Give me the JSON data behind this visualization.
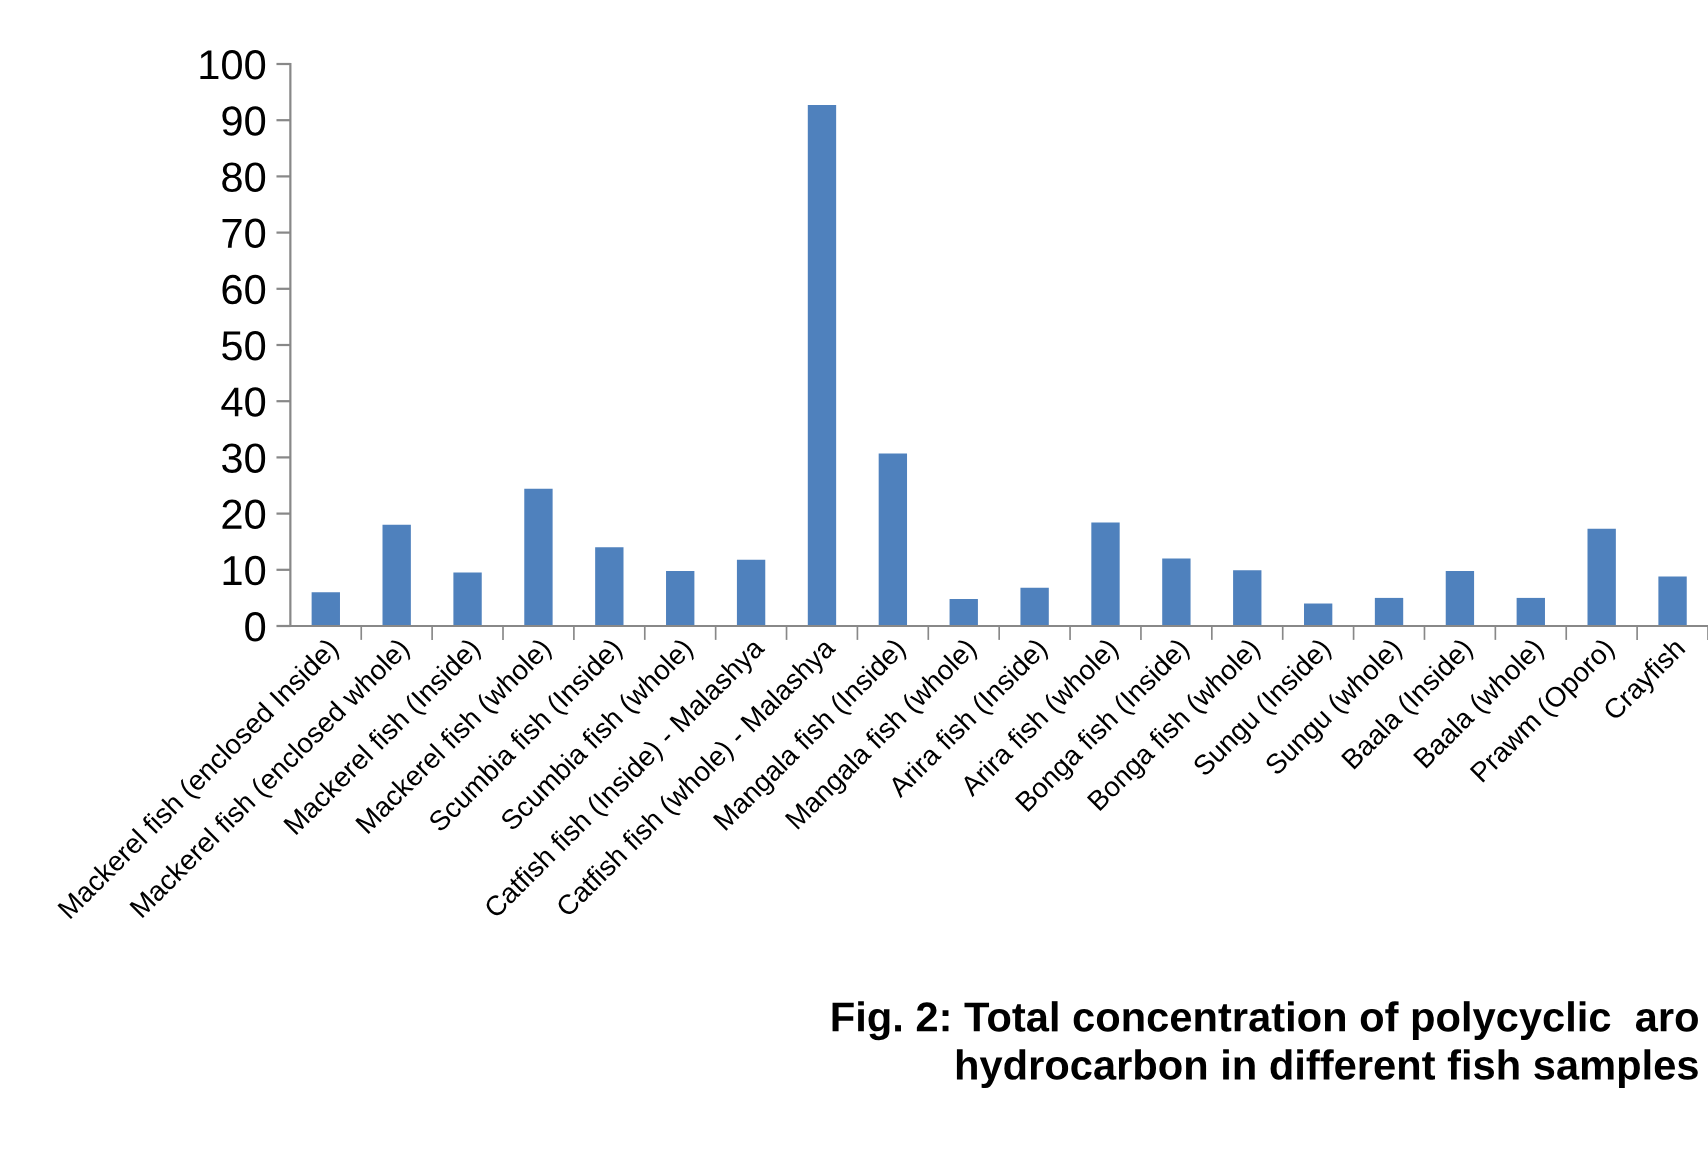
{
  "chart_data": {
    "type": "bar",
    "title": "Fig. 2: Total concentration of polycyclic  aro\nhydrocarbon in different fish samples",
    "categories": [
      "Mackerel fish (enclosed Inside)",
      "Mackerel fish (enclosed whole)",
      "Mackerel fish (Inside)",
      "Mackerel fish (whole)",
      "Scumbia fish (Inside)",
      "Scumbia fish (whole)",
      "Catfish fish (Inside) - Malashya",
      "Catfish fish (whole) - Malashya",
      "Mangala fish (Inside)",
      "Mangala fish (whole)",
      "Arira fish (Inside)",
      "Arira fish (whole)",
      "Bonga fish (Inside)",
      "Bonga fish (whole)",
      "Sungu (Inside)",
      "Sungu (whole)",
      "Baala (Inside)",
      "Baala (whole)",
      "Prawm (Oporo)",
      "Crayfish"
    ],
    "values": [
      6,
      18,
      9.5,
      24.4,
      14,
      9.8,
      11.8,
      92.7,
      30.7,
      4.8,
      6.8,
      18.4,
      12,
      9.9,
      4,
      5,
      9.8,
      5,
      17.3,
      8.8
    ],
    "color": "#4f81bd",
    "ylim": [
      0,
      100
    ],
    "yticks": [
      0,
      10,
      20,
      30,
      40,
      50,
      60,
      70,
      80,
      90,
      100
    ],
    "grid": false,
    "legend": false
  }
}
